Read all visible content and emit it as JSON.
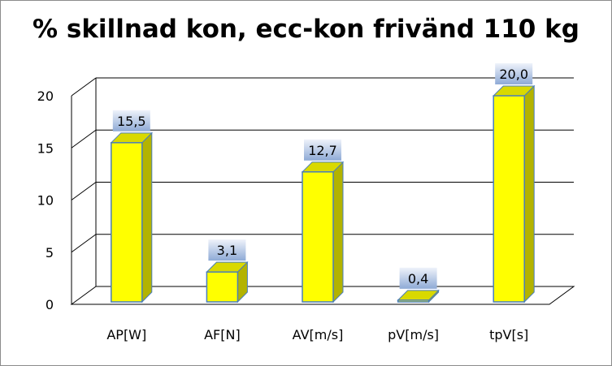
{
  "chart_data": {
    "type": "bar",
    "title": "% skillnad kon, ecc-kon frivänd 110 kg",
    "categories": [
      "AP[W]",
      "AF[N]",
      "AV[m/s]",
      "pV[m/s]",
      "tpV[s]"
    ],
    "values": [
      15.5,
      3.1,
      12.7,
      0.4,
      20.0
    ],
    "data_labels": [
      "15,5",
      "3,1",
      "12,7",
      "0,4",
      "20,0"
    ],
    "y_ticks": [
      0,
      5,
      10,
      15,
      20
    ],
    "y_tick_labels": [
      "0",
      "5",
      "10",
      "15",
      "20"
    ],
    "ylim": [
      0,
      20
    ],
    "xlabel": "",
    "ylabel": "",
    "grid": true,
    "legend": "none",
    "three_d": true,
    "colors": {
      "bar_front": "#ffff00",
      "bar_side": "#b3b300",
      "bar_top": "#d9d900",
      "bar_outline": "#4a7ebb",
      "label_box_top": "#eef2fa",
      "label_box_bottom": "#8eaad6",
      "gridline": "#000000",
      "wall": "#ffffff"
    }
  }
}
